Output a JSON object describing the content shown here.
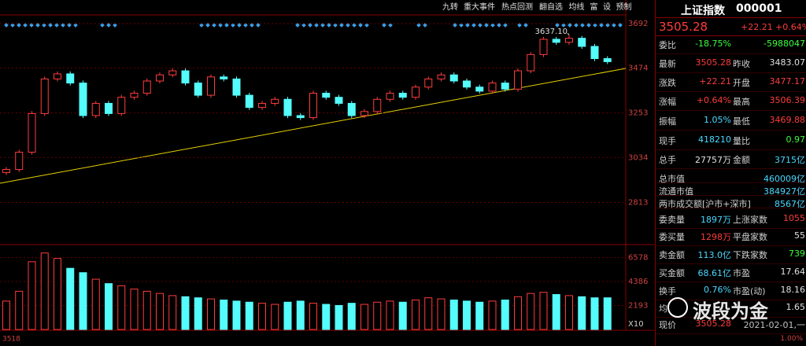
{
  "toolbar": {
    "items": [
      "九转",
      "重大事件",
      "热点回测",
      "翻自选",
      "均线",
      "富",
      "设",
      "预制"
    ]
  },
  "chart": {
    "type": "candlestick",
    "price": {
      "ylim": [
        2610,
        3723
      ],
      "yticks": [
        2813,
        3034,
        3253,
        3474,
        3692
      ],
      "annotation": {
        "value": 3637.1,
        "label": "3637.10",
        "index": 44
      },
      "open": [
        2960,
        2975,
        3060,
        3250,
        3420,
        3445,
        3400,
        3240,
        3300,
        3250,
        3330,
        3350,
        3410,
        3440,
        3460,
        3400,
        3340,
        3430,
        3420,
        3340,
        3280,
        3300,
        3320,
        3240,
        3230,
        3350,
        3330,
        3300,
        3240,
        3260,
        3320,
        3350,
        3330,
        3380,
        3420,
        3440,
        3410,
        3380,
        3360,
        3400,
        3370,
        3460,
        3540,
        3615,
        3600,
        3620,
        3580,
        3520
      ],
      "high": [
        2987,
        3072,
        3262,
        3432,
        3457,
        3457,
        3412,
        3312,
        3312,
        3342,
        3362,
        3422,
        3452,
        3472,
        3472,
        3412,
        3442,
        3442,
        3432,
        3352,
        3312,
        3332,
        3332,
        3252,
        3362,
        3362,
        3342,
        3312,
        3272,
        3332,
        3362,
        3362,
        3392,
        3432,
        3452,
        3452,
        3422,
        3392,
        3412,
        3412,
        3472,
        3552,
        3627,
        3627,
        3637.1,
        3632,
        3592,
        3532
      ],
      "low": [
        2948,
        2963,
        3048,
        3238,
        3408,
        3388,
        3228,
        3228,
        3238,
        3238,
        3318,
        3338,
        3398,
        3428,
        3388,
        3328,
        3328,
        3408,
        3328,
        3268,
        3268,
        3288,
        3228,
        3218,
        3218,
        3318,
        3288,
        3228,
        3228,
        3248,
        3308,
        3318,
        3318,
        3368,
        3408,
        3398,
        3368,
        3348,
        3348,
        3358,
        3358,
        3448,
        3528,
        3588,
        3588,
        3568,
        3508,
        3493
      ],
      "close": [
        2975,
        3060,
        3250,
        3420,
        3445,
        3400,
        3240,
        3300,
        3250,
        3330,
        3350,
        3410,
        3440,
        3460,
        3400,
        3340,
        3430,
        3420,
        3340,
        3280,
        3300,
        3320,
        3240,
        3230,
        3350,
        3330,
        3300,
        3240,
        3260,
        3320,
        3350,
        3330,
        3380,
        3420,
        3440,
        3410,
        3380,
        3360,
        3400,
        3370,
        3460,
        3540,
        3615,
        3600,
        3620,
        3580,
        3520,
        3505
      ]
    },
    "volume": {
      "ylim": [
        0,
        7700
      ],
      "yticks": [
        2193,
        4386,
        6578
      ],
      "unit_label": "X10",
      "values": [
        2600,
        3500,
        6200,
        7000,
        6500,
        5600,
        5200,
        4600,
        4200,
        4000,
        3700,
        3500,
        3300,
        3100,
        3000,
        2900,
        2800,
        2700,
        2600,
        2500,
        2400,
        2300,
        2500,
        2600,
        2400,
        2300,
        2200,
        2400,
        2300,
        2500,
        2600,
        2500,
        2700,
        2900,
        2800,
        2700,
        2600,
        2500,
        2600,
        2700,
        3000,
        3300,
        3400,
        3200,
        3100,
        3000,
        2900,
        2900
      ]
    }
  },
  "quote": {
    "name": "上证指数",
    "code": "000001",
    "price": "3505.28",
    "change": "+22.21",
    "pct": "+0.64%",
    "rows": [
      {
        "label": "委比",
        "value": "-18.75%",
        "value2": "-5988047",
        "color": "#3cff3c",
        "color2": "#3cff3c"
      },
      {
        "label": "最新",
        "value": "3505.28",
        "label2": "昨收",
        "value2": "3483.07",
        "color": "#ff3c3c",
        "color2": "#e0e0e0"
      },
      {
        "label": "涨跌",
        "value": "+22.21",
        "label2": "开盘",
        "value2": "3477.17",
        "color": "#ff3c3c",
        "color2": "#ff3c3c"
      },
      {
        "label": "涨幅",
        "value": "+0.64%",
        "label2": "最高",
        "value2": "3506.39",
        "color": "#ff3c3c",
        "color2": "#ff3c3c"
      },
      {
        "label": "振幅",
        "value": "1.05%",
        "label2": "最低",
        "value2": "3469.88",
        "color": "#4ad8ff",
        "color2": "#ff3c3c"
      },
      {
        "label": "现手",
        "value": "418210",
        "label2": "量比",
        "value2": "0.97",
        "color": "#4ad8ff",
        "color2": "#3cff3c"
      },
      {
        "label": "总手",
        "value": "27757万",
        "label2": "金额",
        "value2": "3715亿",
        "color": "#e0e0e0",
        "color2": "#4ad8ff"
      },
      {
        "label": "总市值",
        "value2": "460009亿",
        "color2": "#4ad8ff"
      },
      {
        "label": "流通市值",
        "value2": "384927亿",
        "color2": "#4ad8ff"
      },
      {
        "label": "两市成交额[沪市+深市]",
        "value2": "8567亿",
        "color2": "#4ad8ff"
      },
      {
        "label": "委卖量",
        "value": "1897万",
        "label2": "上涨家数",
        "value2": "1055",
        "color": "#4ad8ff",
        "color2": "#ff3c3c"
      },
      {
        "label": "委买量",
        "value": "1298万",
        "label2": "平盘家数",
        "value2": "55",
        "color": "#ff3c3c",
        "color2": "#e0e0e0"
      },
      {
        "label": "卖金额",
        "value": "113.0亿",
        "label2": "下跌家数",
        "value2": "739",
        "color": "#4ad8ff",
        "color2": "#3cff3c"
      },
      {
        "label": "买金额",
        "value": "68.61亿",
        "label2": "市盈",
        "value2": "17.64",
        "color": "#4ad8ff",
        "color2": "#e0e0e0"
      },
      {
        "label": "换手",
        "value": "0.76%",
        "label2": "市盈(动)",
        "value2": "18.16",
        "color": "#4ad8ff",
        "color2": "#e0e0e0"
      },
      {
        "label": "均",
        "value2": "1.65",
        "color2": "#e0e0e0"
      },
      {
        "label": "现价",
        "value": "3505.28",
        "value2": "2021-02-01,一",
        "color": "#ff3c3c",
        "color2": "#c0c0c0"
      }
    ]
  },
  "watermark": "波段为金",
  "footer": {
    "left": "3518",
    "right": "1.00%"
  }
}
